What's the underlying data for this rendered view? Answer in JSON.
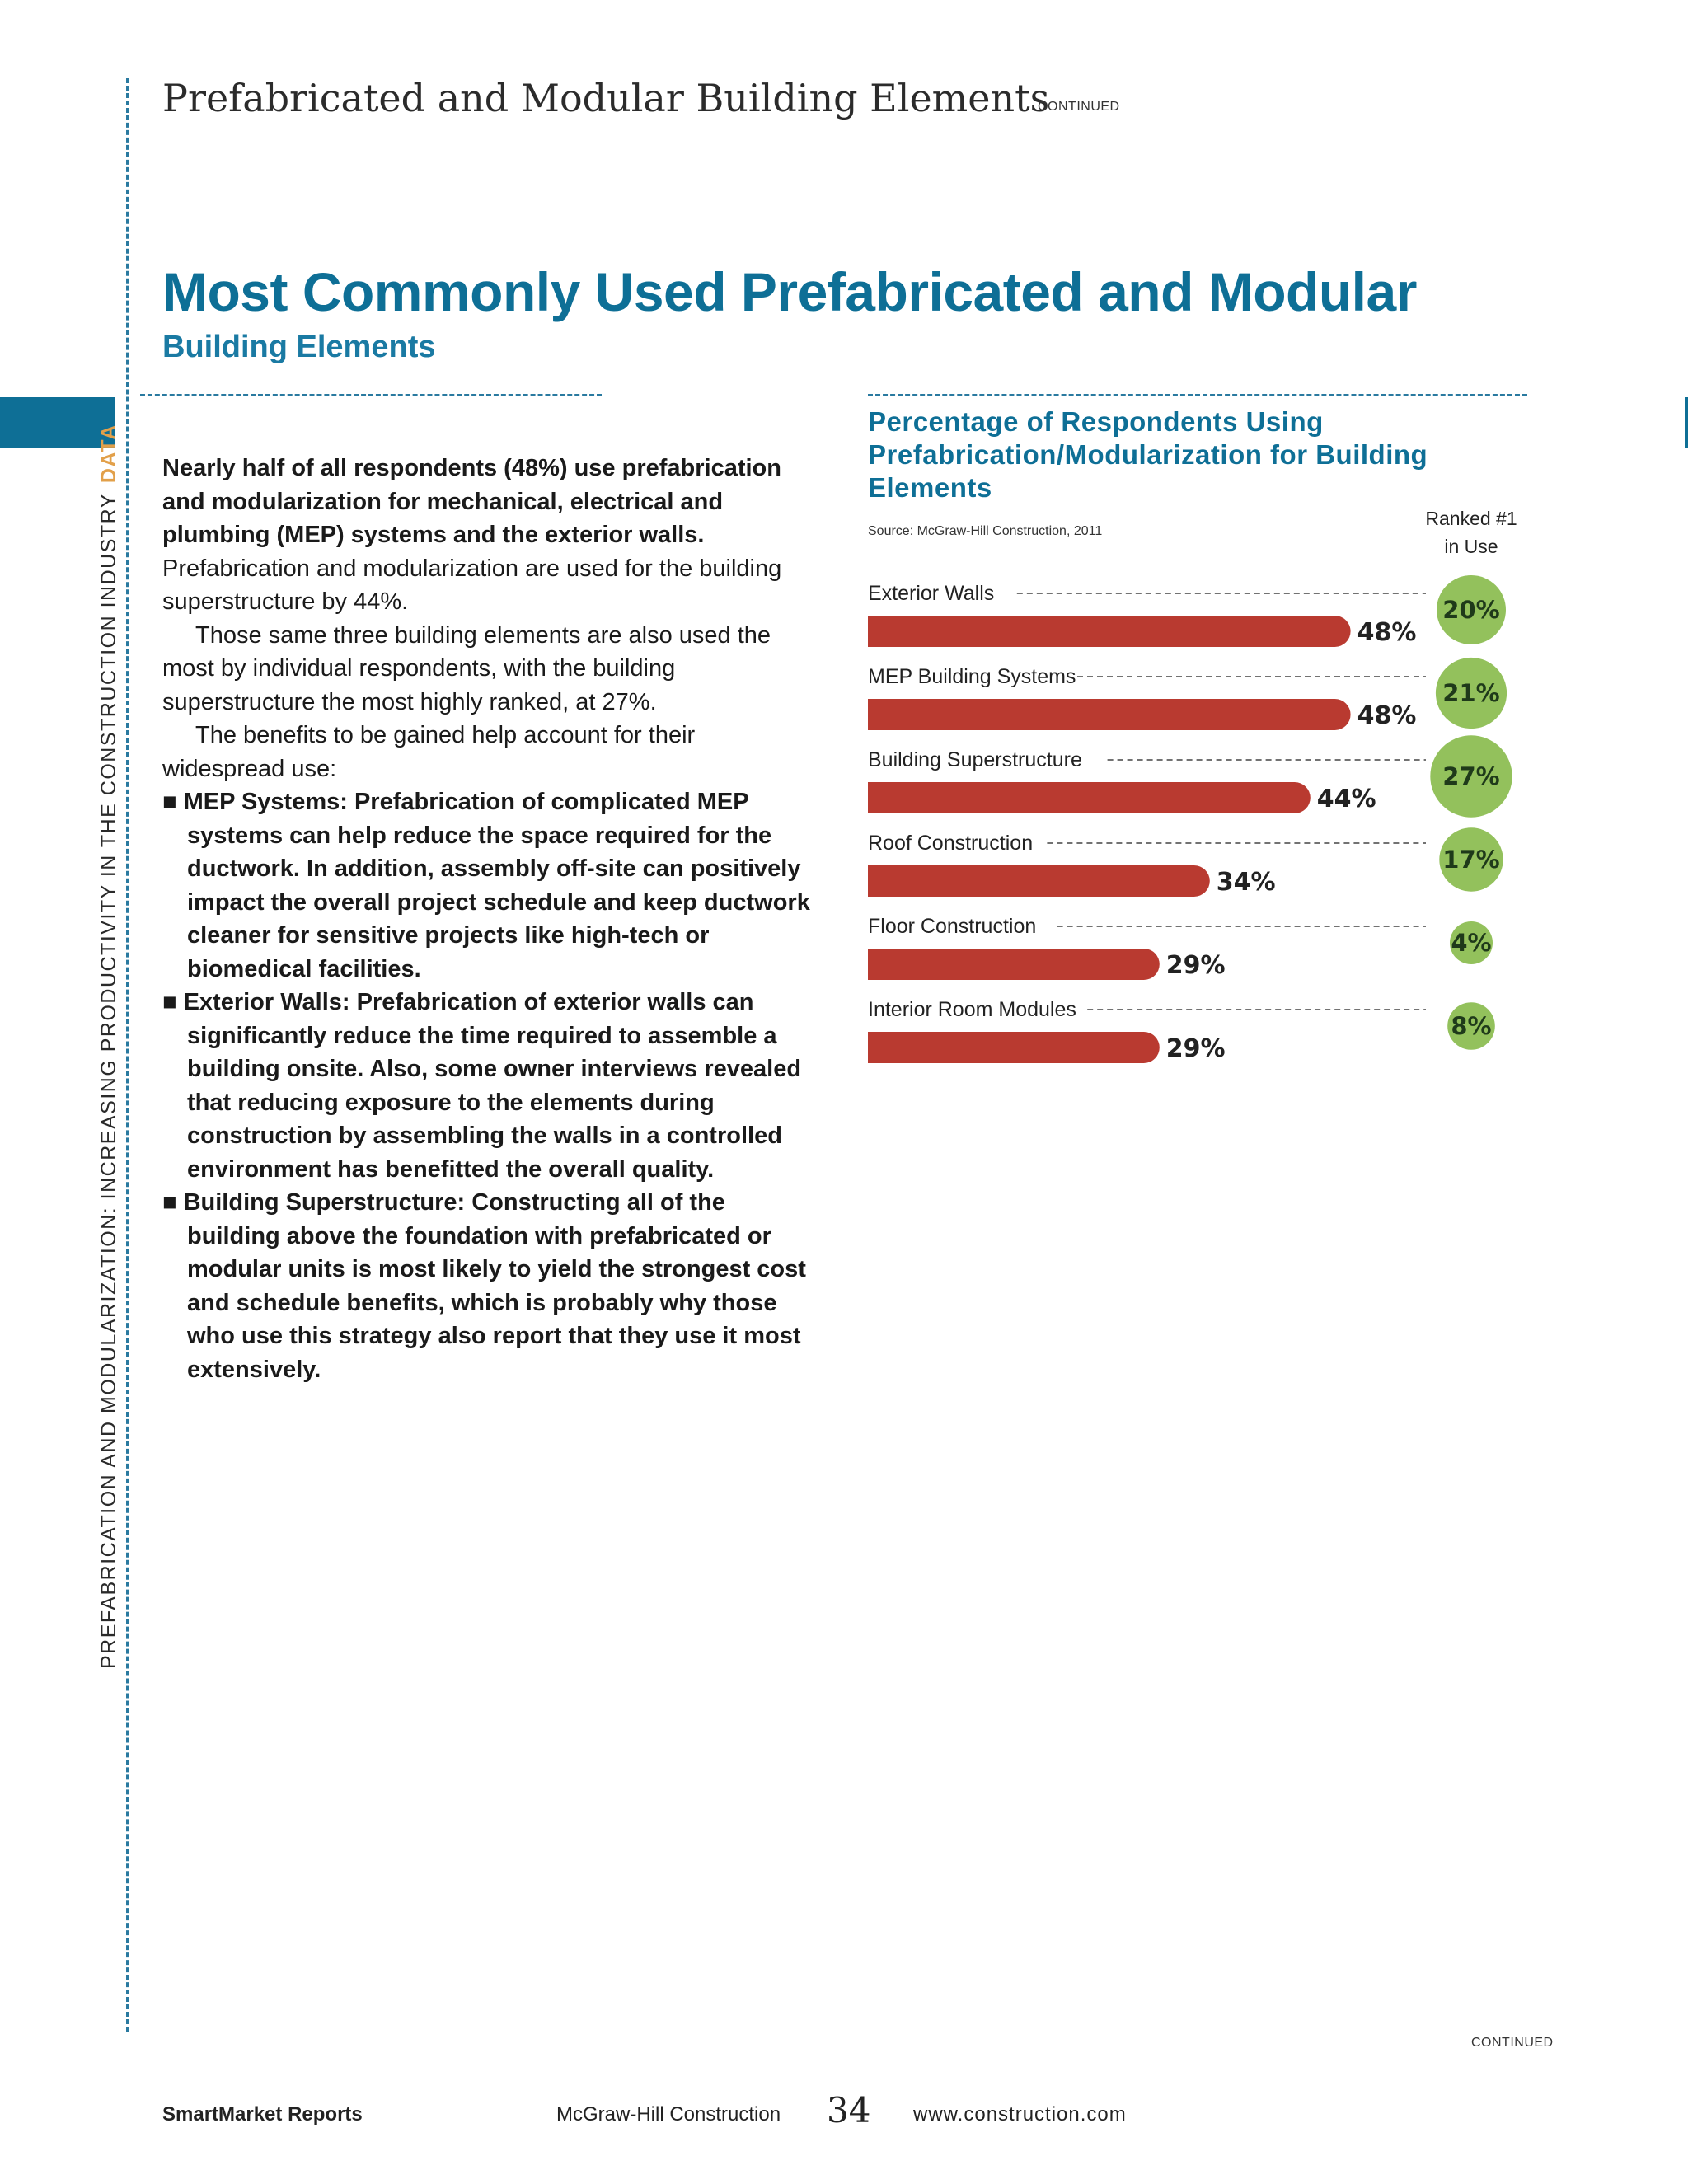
{
  "header": {
    "section_title": "Prefabricated and Modular Building Elements",
    "continued": "CONTINUED"
  },
  "sidebar": {
    "vertical_text": "PREFABRICATION AND MODULARIZATION: INCREASING PRODUCTIVITY IN THE CONSTRUCTION INDUSTRY",
    "tag": "DATA"
  },
  "main": {
    "title": "Most Commonly Used Prefabricated and Modular",
    "subtitle": "Building Elements"
  },
  "body": {
    "p1_bold": "Nearly half of all respondents (48%) use prefabrication and modularization for mechanical, electrical and plumbing (MEP) systems and the exterior walls.",
    "p1_rest": " Prefabrication and modularization are used for the building superstructure by 44%.",
    "p2": "Those same three building elements are also used the most by individual respondents, with the building superstructure the most highly ranked, at 27%.",
    "p3": "The benefits to be gained help account for their widespread use:",
    "bullets": [
      "MEP Systems: Prefabrication of complicated MEP systems can help reduce the space required for the ductwork. In addition, assembly off-site can positively impact the overall project schedule and keep ductwork cleaner for sensitive projects like high-tech or biomedical facilities.",
      "Exterior Walls: Prefabrication of exterior walls can significantly reduce the time required to assemble a building onsite. Also, some owner interviews revealed that reducing exposure to the elements during construction by assembling the walls in a controlled environment has benefitted the overall quality.",
      "Building Superstructure: Constructing all of the building above the foundation with prefabricated or modular units is most likely to yield the strongest cost and schedule benefits, which is probably why those who use this strategy also report that they use it most extensively."
    ]
  },
  "chart_data": {
    "type": "bar",
    "orientation": "horizontal",
    "title": "Percentage of Respondents Using Prefabrication/Modularization for Building Elements",
    "source": "Source: McGraw-Hill Construction, 2011",
    "ranked_header_1": "Ranked #1",
    "ranked_header_2": "in Use",
    "categories": [
      "Exterior Walls",
      "MEP Building Systems",
      "Building Superstructure",
      "Roof Construction",
      "Floor Construction",
      "Interior Room Modules"
    ],
    "series": [
      {
        "values": [
          48,
          48,
          44,
          34,
          29,
          29
        ]
      },
      {
        "values": [
          20,
          21,
          27,
          17,
          4,
          8
        ]
      }
    ],
    "value_labels": [
      "48%",
      "48%",
      "44%",
      "34%",
      "29%",
      "29%"
    ],
    "rank_labels": [
      "20%",
      "21%",
      "27%",
      "17%",
      "4%",
      "8%"
    ],
    "bar_color": "#b93a30",
    "circle_color": "#93c15c"
  },
  "footer": {
    "brand": "SmartMarket Reports",
    "publisher": "McGraw-Hill Construction",
    "page": "34",
    "url": "www.construction.com",
    "continued": "CONTINUED"
  }
}
